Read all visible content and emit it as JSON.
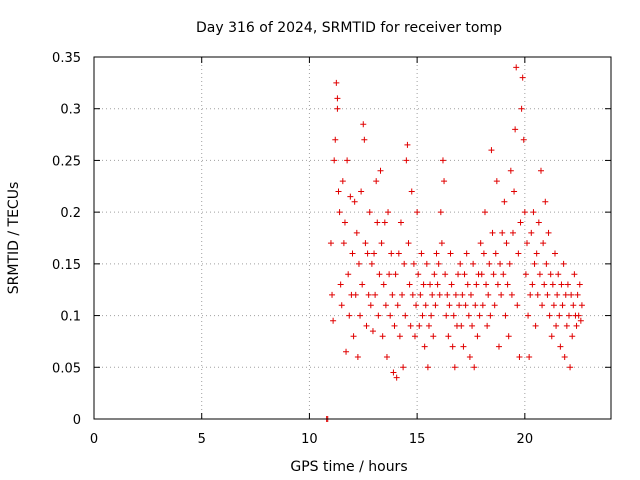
{
  "chart_data": {
    "type": "scatter",
    "title": "Day 316 of 2024, SRMTID for receiver tomp",
    "xlabel": "GPS time / hours",
    "ylabel": "SRMTID / TECUs",
    "xlim": [
      0,
      24
    ],
    "ylim": [
      0,
      0.35
    ],
    "xticks": [
      0,
      5,
      10,
      15,
      20
    ],
    "xtick_labels": [
      "0",
      "5",
      "10",
      "15",
      "20"
    ],
    "yticks": [
      0,
      0.05,
      0.1,
      0.15,
      0.2,
      0.25,
      0.3,
      0.35
    ],
    "ytick_labels": [
      "0",
      "0.05",
      "0.1",
      "0.15",
      "0.2",
      "0.25",
      "0.3",
      "0.35"
    ],
    "grid": true,
    "marker": "plus",
    "color": "#e00000",
    "series": [
      {
        "name": "SRMTID",
        "points": [
          [
            10.8,
            0.0
          ],
          [
            10.85,
            0.0
          ],
          [
            11.0,
            0.17
          ],
          [
            11.05,
            0.12
          ],
          [
            11.1,
            0.095
          ],
          [
            11.15,
            0.25
          ],
          [
            11.2,
            0.27
          ],
          [
            11.25,
            0.325
          ],
          [
            11.3,
            0.31
          ],
          [
            11.3,
            0.3
          ],
          [
            11.35,
            0.22
          ],
          [
            11.4,
            0.2
          ],
          [
            11.45,
            0.13
          ],
          [
            11.5,
            0.11
          ],
          [
            11.55,
            0.23
          ],
          [
            11.6,
            0.17
          ],
          [
            11.65,
            0.19
          ],
          [
            11.7,
            0.065
          ],
          [
            11.75,
            0.25
          ],
          [
            11.8,
            0.14
          ],
          [
            11.85,
            0.1
          ],
          [
            11.9,
            0.215
          ],
          [
            11.95,
            0.12
          ],
          [
            12.0,
            0.16
          ],
          [
            12.05,
            0.08
          ],
          [
            12.1,
            0.21
          ],
          [
            12.15,
            0.12
          ],
          [
            12.2,
            0.18
          ],
          [
            12.25,
            0.06
          ],
          [
            12.3,
            0.15
          ],
          [
            12.35,
            0.1
          ],
          [
            12.4,
            0.22
          ],
          [
            12.45,
            0.13
          ],
          [
            12.5,
            0.285
          ],
          [
            12.55,
            0.27
          ],
          [
            12.6,
            0.17
          ],
          [
            12.65,
            0.09
          ],
          [
            12.7,
            0.16
          ],
          [
            12.75,
            0.12
          ],
          [
            12.8,
            0.2
          ],
          [
            12.85,
            0.11
          ],
          [
            12.9,
            0.15
          ],
          [
            12.95,
            0.085
          ],
          [
            13.0,
            0.16
          ],
          [
            13.05,
            0.12
          ],
          [
            13.1,
            0.23
          ],
          [
            13.15,
            0.19
          ],
          [
            13.2,
            0.1
          ],
          [
            13.25,
            0.14
          ],
          [
            13.3,
            0.24
          ],
          [
            13.35,
            0.17
          ],
          [
            13.4,
            0.08
          ],
          [
            13.45,
            0.13
          ],
          [
            13.5,
            0.19
          ],
          [
            13.55,
            0.11
          ],
          [
            13.6,
            0.06
          ],
          [
            13.65,
            0.2
          ],
          [
            13.7,
            0.14
          ],
          [
            13.75,
            0.1
          ],
          [
            13.8,
            0.16
          ],
          [
            13.85,
            0.12
          ],
          [
            13.9,
            0.045
          ],
          [
            13.95,
            0.09
          ],
          [
            14.0,
            0.14
          ],
          [
            14.05,
            0.04
          ],
          [
            14.1,
            0.11
          ],
          [
            14.15,
            0.16
          ],
          [
            14.2,
            0.08
          ],
          [
            14.25,
            0.19
          ],
          [
            14.3,
            0.12
          ],
          [
            14.35,
            0.05
          ],
          [
            14.4,
            0.15
          ],
          [
            14.45,
            0.1
          ],
          [
            14.5,
            0.25
          ],
          [
            14.55,
            0.265
          ],
          [
            14.6,
            0.17
          ],
          [
            14.65,
            0.13
          ],
          [
            14.7,
            0.09
          ],
          [
            14.75,
            0.22
          ],
          [
            14.8,
            0.12
          ],
          [
            14.85,
            0.15
          ],
          [
            14.9,
            0.08
          ],
          [
            14.95,
            0.11
          ],
          [
            15.0,
            0.2
          ],
          [
            15.05,
            0.14
          ],
          [
            15.1,
            0.09
          ],
          [
            15.15,
            0.12
          ],
          [
            15.2,
            0.16
          ],
          [
            15.25,
            0.1
          ],
          [
            15.3,
            0.13
          ],
          [
            15.35,
            0.07
          ],
          [
            15.4,
            0.11
          ],
          [
            15.45,
            0.15
          ],
          [
            15.5,
            0.05
          ],
          [
            15.55,
            0.09
          ],
          [
            15.6,
            0.13
          ],
          [
            15.65,
            0.1
          ],
          [
            15.7,
            0.12
          ],
          [
            15.75,
            0.08
          ],
          [
            15.8,
            0.14
          ],
          [
            15.85,
            0.11
          ],
          [
            15.9,
            0.16
          ],
          [
            15.95,
            0.13
          ],
          [
            16.0,
            0.15
          ],
          [
            16.05,
            0.12
          ],
          [
            16.1,
            0.2
          ],
          [
            16.15,
            0.17
          ],
          [
            16.2,
            0.25
          ],
          [
            16.25,
            0.23
          ],
          [
            16.3,
            0.14
          ],
          [
            16.35,
            0.1
          ],
          [
            16.4,
            0.12
          ],
          [
            16.45,
            0.08
          ],
          [
            16.5,
            0.11
          ],
          [
            16.55,
            0.16
          ],
          [
            16.6,
            0.13
          ],
          [
            16.65,
            0.07
          ],
          [
            16.7,
            0.1
          ],
          [
            16.75,
            0.05
          ],
          [
            16.8,
            0.12
          ],
          [
            16.85,
            0.09
          ],
          [
            16.9,
            0.14
          ],
          [
            16.95,
            0.11
          ],
          [
            17.0,
            0.15
          ],
          [
            17.05,
            0.09
          ],
          [
            17.1,
            0.12
          ],
          [
            17.15,
            0.07
          ],
          [
            17.2,
            0.14
          ],
          [
            17.25,
            0.11
          ],
          [
            17.3,
            0.16
          ],
          [
            17.35,
            0.13
          ],
          [
            17.4,
            0.1
          ],
          [
            17.45,
            0.06
          ],
          [
            17.5,
            0.12
          ],
          [
            17.55,
            0.09
          ],
          [
            17.6,
            0.15
          ],
          [
            17.65,
            0.05
          ],
          [
            17.7,
            0.11
          ],
          [
            17.75,
            0.13
          ],
          [
            17.8,
            0.08
          ],
          [
            17.85,
            0.14
          ],
          [
            17.9,
            0.1
          ],
          [
            17.95,
            0.17
          ],
          [
            18.0,
            0.14
          ],
          [
            18.05,
            0.11
          ],
          [
            18.1,
            0.16
          ],
          [
            18.15,
            0.2
          ],
          [
            18.2,
            0.13
          ],
          [
            18.25,
            0.09
          ],
          [
            18.3,
            0.12
          ],
          [
            18.35,
            0.15
          ],
          [
            18.4,
            0.1
          ],
          [
            18.45,
            0.26
          ],
          [
            18.5,
            0.18
          ],
          [
            18.55,
            0.14
          ],
          [
            18.6,
            0.11
          ],
          [
            18.65,
            0.16
          ],
          [
            18.7,
            0.23
          ],
          [
            18.75,
            0.13
          ],
          [
            18.8,
            0.07
          ],
          [
            18.85,
            0.15
          ],
          [
            18.9,
            0.12
          ],
          [
            18.95,
            0.18
          ],
          [
            19.0,
            0.14
          ],
          [
            19.05,
            0.21
          ],
          [
            19.1,
            0.1
          ],
          [
            19.15,
            0.17
          ],
          [
            19.2,
            0.13
          ],
          [
            19.25,
            0.08
          ],
          [
            19.3,
            0.15
          ],
          [
            19.35,
            0.24
          ],
          [
            19.4,
            0.12
          ],
          [
            19.45,
            0.18
          ],
          [
            19.5,
            0.22
          ],
          [
            19.55,
            0.28
          ],
          [
            19.6,
            0.34
          ],
          [
            19.65,
            0.11
          ],
          [
            19.7,
            0.16
          ],
          [
            19.75,
            0.06
          ],
          [
            19.8,
            0.19
          ],
          [
            19.85,
            0.3
          ],
          [
            19.9,
            0.33
          ],
          [
            19.95,
            0.27
          ],
          [
            20.0,
            0.2
          ],
          [
            20.05,
            0.14
          ],
          [
            20.1,
            0.17
          ],
          [
            20.15,
            0.1
          ],
          [
            20.2,
            0.06
          ],
          [
            20.25,
            0.12
          ],
          [
            20.3,
            0.18
          ],
          [
            20.35,
            0.13
          ],
          [
            20.4,
            0.2
          ],
          [
            20.45,
            0.15
          ],
          [
            20.5,
            0.09
          ],
          [
            20.55,
            0.16
          ],
          [
            20.6,
            0.12
          ],
          [
            20.65,
            0.19
          ],
          [
            20.7,
            0.14
          ],
          [
            20.75,
            0.24
          ],
          [
            20.8,
            0.11
          ],
          [
            20.85,
            0.17
          ],
          [
            20.9,
            0.13
          ],
          [
            20.95,
            0.21
          ],
          [
            21.0,
            0.15
          ],
          [
            21.05,
            0.12
          ],
          [
            21.1,
            0.18
          ],
          [
            21.15,
            0.1
          ],
          [
            21.2,
            0.14
          ],
          [
            21.25,
            0.08
          ],
          [
            21.3,
            0.13
          ],
          [
            21.35,
            0.11
          ],
          [
            21.4,
            0.16
          ],
          [
            21.45,
            0.09
          ],
          [
            21.5,
            0.12
          ],
          [
            21.55,
            0.14
          ],
          [
            21.6,
            0.1
          ],
          [
            21.65,
            0.07
          ],
          [
            21.7,
            0.13
          ],
          [
            21.75,
            0.11
          ],
          [
            21.8,
            0.15
          ],
          [
            21.85,
            0.06
          ],
          [
            21.9,
            0.12
          ],
          [
            21.95,
            0.09
          ],
          [
            22.0,
            0.13
          ],
          [
            22.05,
            0.1
          ],
          [
            22.1,
            0.05
          ],
          [
            22.15,
            0.12
          ],
          [
            22.2,
            0.08
          ],
          [
            22.25,
            0.11
          ],
          [
            22.3,
            0.14
          ],
          [
            22.35,
            0.1
          ],
          [
            22.4,
            0.09
          ],
          [
            22.45,
            0.12
          ],
          [
            22.5,
            0.1
          ],
          [
            22.55,
            0.13
          ],
          [
            22.6,
            0.095
          ],
          [
            22.65,
            0.11
          ]
        ]
      }
    ]
  }
}
